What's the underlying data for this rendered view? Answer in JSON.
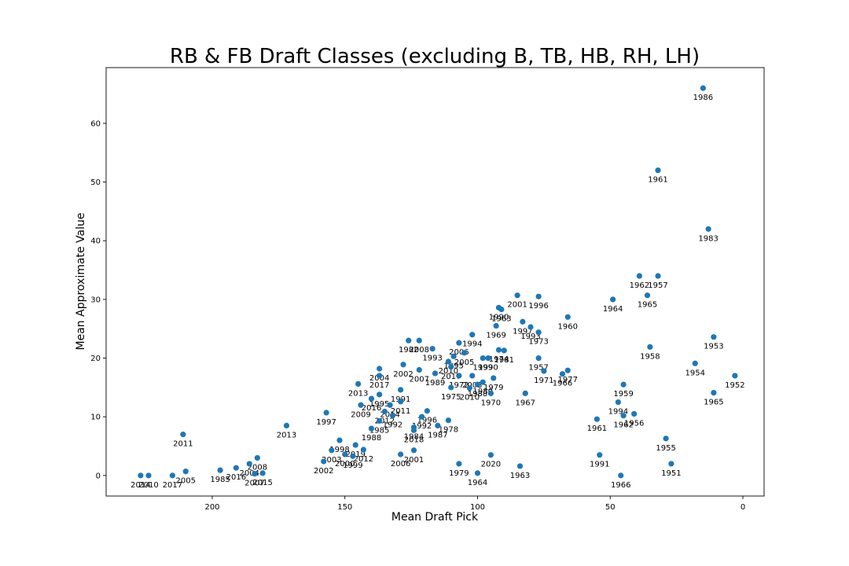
{
  "chart_data": {
    "type": "scatter",
    "title": "RB & FB Draft Classes (excluding B, TB, HB, RH, LH)",
    "xlabel": "Mean Draft Pick",
    "ylabel": "Mean Approximate Value",
    "xlim": [
      240,
      -8
    ],
    "ylim": [
      -3.5,
      69.5
    ],
    "x_inverted": true,
    "x_ticks": [
      200,
      150,
      100,
      50,
      0
    ],
    "y_ticks": [
      0,
      10,
      20,
      30,
      40,
      50,
      60
    ],
    "grid": false,
    "color": "#1f77b4",
    "points": [
      {
        "x": 15,
        "y": 66,
        "label": "1986"
      },
      {
        "x": 32,
        "y": 52,
        "label": "1961"
      },
      {
        "x": 13,
        "y": 42,
        "label": "1983"
      },
      {
        "x": 39,
        "y": 34,
        "label": "1962"
      },
      {
        "x": 32,
        "y": 34,
        "label": "1957"
      },
      {
        "x": 36,
        "y": 30.7,
        "label": "1965"
      },
      {
        "x": 49,
        "y": 30,
        "label": "1964"
      },
      {
        "x": 85,
        "y": 30.7,
        "label": "2001"
      },
      {
        "x": 77,
        "y": 30.5,
        "label": "1996"
      },
      {
        "x": 92,
        "y": 28.6,
        "label": "1990"
      },
      {
        "x": 91,
        "y": 28.3,
        "label": "1963"
      },
      {
        "x": 66,
        "y": 27,
        "label": "1960"
      },
      {
        "x": 83,
        "y": 26.2,
        "label": "1997"
      },
      {
        "x": 80,
        "y": 25.3,
        "label": "1993"
      },
      {
        "x": 93,
        "y": 25.5,
        "label": "1969"
      },
      {
        "x": 77,
        "y": 24.4,
        "label": "1973"
      },
      {
        "x": 11,
        "y": 23.6,
        "label": "1953"
      },
      {
        "x": 102,
        "y": 24,
        "label": "1994"
      },
      {
        "x": 126,
        "y": 23,
        "label": "1982"
      },
      {
        "x": 122,
        "y": 23,
        "label": "2008"
      },
      {
        "x": 117,
        "y": 21.6,
        "label": "1993"
      },
      {
        "x": 107,
        "y": 22.6,
        "label": "2006"
      },
      {
        "x": 35,
        "y": 21.9,
        "label": "1958"
      },
      {
        "x": 92,
        "y": 21.4,
        "label": "1974"
      },
      {
        "x": 90,
        "y": 21.3,
        "label": "1981"
      },
      {
        "x": 105,
        "y": 20.9,
        "label": "2005"
      },
      {
        "x": 109,
        "y": 20.3,
        "label": "1995"
      },
      {
        "x": 98,
        "y": 20,
        "label": "1999"
      },
      {
        "x": 96,
        "y": 20,
        "label": "1990"
      },
      {
        "x": 77,
        "y": 20,
        "label": "1957"
      },
      {
        "x": 111,
        "y": 19.4,
        "label": "2010"
      },
      {
        "x": 110,
        "y": 18.5,
        "label": "2017"
      },
      {
        "x": 128,
        "y": 18.9,
        "label": "2002"
      },
      {
        "x": 137,
        "y": 18.2,
        "label": "2004"
      },
      {
        "x": 122,
        "y": 18,
        "label": "2007"
      },
      {
        "x": 18,
        "y": 19.1,
        "label": "1954"
      },
      {
        "x": 75,
        "y": 17.8,
        "label": "1971"
      },
      {
        "x": 66,
        "y": 17.9,
        "label": "1977"
      },
      {
        "x": 68,
        "y": 17.3,
        "label": "1966"
      },
      {
        "x": 3,
        "y": 17,
        "label": "1952"
      },
      {
        "x": 116,
        "y": 17.4,
        "label": "1989"
      },
      {
        "x": 107,
        "y": 17,
        "label": "1972"
      },
      {
        "x": 102,
        "y": 17,
        "label": "2003"
      },
      {
        "x": 94,
        "y": 16.6,
        "label": "1979"
      },
      {
        "x": 137,
        "y": 17,
        "label": "2017"
      },
      {
        "x": 145,
        "y": 15.6,
        "label": "2013"
      },
      {
        "x": 110,
        "y": 15,
        "label": "1975"
      },
      {
        "x": 98,
        "y": 15.9,
        "label": "1980"
      },
      {
        "x": 100,
        "y": 15.5,
        "label": "1988"
      },
      {
        "x": 103,
        "y": 14.9,
        "label": "2010"
      },
      {
        "x": 95,
        "y": 14,
        "label": "1970"
      },
      {
        "x": 82,
        "y": 14,
        "label": "1967"
      },
      {
        "x": 45,
        "y": 15.5,
        "label": "1959"
      },
      {
        "x": 11,
        "y": 14.1,
        "label": "1965"
      },
      {
        "x": 129,
        "y": 14.6,
        "label": "1991"
      },
      {
        "x": 137,
        "y": 13.8,
        "label": "1995"
      },
      {
        "x": 140,
        "y": 13.1,
        "label": "2016"
      },
      {
        "x": 144,
        "y": 12,
        "label": "2009"
      },
      {
        "x": 133,
        "y": 12,
        "label": "2014"
      },
      {
        "x": 129,
        "y": 12.6,
        "label": "2011"
      },
      {
        "x": 47,
        "y": 12.5,
        "label": "1994"
      },
      {
        "x": 41,
        "y": 10.5,
        "label": "1956"
      },
      {
        "x": 45,
        "y": 10.2,
        "label": "1962"
      },
      {
        "x": 55,
        "y": 9.6,
        "label": "1961"
      },
      {
        "x": 157,
        "y": 10.7,
        "label": "1997"
      },
      {
        "x": 135,
        "y": 10.9,
        "label": "2012"
      },
      {
        "x": 132,
        "y": 10.2,
        "label": "1992"
      },
      {
        "x": 137,
        "y": 9.3,
        "label": "1985"
      },
      {
        "x": 119,
        "y": 11,
        "label": "1996"
      },
      {
        "x": 121,
        "y": 10,
        "label": "1992"
      },
      {
        "x": 111,
        "y": 9.4,
        "label": "1978"
      },
      {
        "x": 115,
        "y": 8.5,
        "label": "1987"
      },
      {
        "x": 124,
        "y": 7.7,
        "label": "2018"
      },
      {
        "x": 140,
        "y": 8,
        "label": "1988"
      },
      {
        "x": 172,
        "y": 8.5,
        "label": "2013"
      },
      {
        "x": 124,
        "y": 8.2,
        "label": "1984"
      },
      {
        "x": 211,
        "y": 7,
        "label": "2011"
      },
      {
        "x": 29,
        "y": 6.3,
        "label": "1955"
      },
      {
        "x": 152,
        "y": 6,
        "label": "1998"
      },
      {
        "x": 146,
        "y": 5.2,
        "label": "2019"
      },
      {
        "x": 143,
        "y": 4.4,
        "label": "2012"
      },
      {
        "x": 155,
        "y": 4.3,
        "label": "2003"
      },
      {
        "x": 150,
        "y": 3.6,
        "label": "2000"
      },
      {
        "x": 147,
        "y": 3.3,
        "label": "1999"
      },
      {
        "x": 124,
        "y": 4.3,
        "label": "2001"
      },
      {
        "x": 129,
        "y": 3.6,
        "label": "2006"
      },
      {
        "x": 95,
        "y": 3.5,
        "label": "2020"
      },
      {
        "x": 54,
        "y": 3.5,
        "label": "1991"
      },
      {
        "x": 158,
        "y": 2.4,
        "label": "2002"
      },
      {
        "x": 183,
        "y": 3,
        "label": "2008"
      },
      {
        "x": 186,
        "y": 2,
        "label": "2004"
      },
      {
        "x": 191,
        "y": 1.3,
        "label": "2016"
      },
      {
        "x": 197,
        "y": 0.9,
        "label": "1985"
      },
      {
        "x": 184,
        "y": 0.3,
        "label": "2007"
      },
      {
        "x": 181,
        "y": 0.4,
        "label": "2015"
      },
      {
        "x": 107,
        "y": 2,
        "label": "1979"
      },
      {
        "x": 84,
        "y": 1.6,
        "label": "1963"
      },
      {
        "x": 27,
        "y": 2,
        "label": "1951"
      },
      {
        "x": 100,
        "y": 0.4,
        "label": "1964"
      },
      {
        "x": 46,
        "y": 0,
        "label": "1966"
      },
      {
        "x": 210,
        "y": 0.7,
        "label": "2005"
      },
      {
        "x": 215,
        "y": 0,
        "label": "2017"
      },
      {
        "x": 227,
        "y": 0,
        "label": "2014"
      },
      {
        "x": 224,
        "y": 0,
        "label": "2010"
      }
    ]
  }
}
